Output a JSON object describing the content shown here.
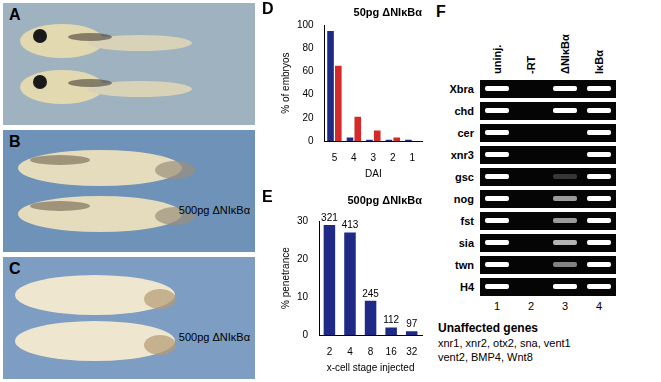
{
  "photos": [
    {
      "letter": "A"
    },
    {
      "letter": "B",
      "label": "500pg ΔNIκBα"
    },
    {
      "letter": "C",
      "label": "500pg ΔNIκBα"
    }
  ],
  "chart_data": [
    {
      "letter": "D",
      "type": "bar",
      "title": "50pg ΔNIκBα",
      "x_label": "DAI",
      "y_label": "% of embryos",
      "categories": [
        "5",
        "4",
        "3",
        "2",
        "1"
      ],
      "series": [
        {
          "color": "#1f2a86",
          "values": [
            95,
            3,
            1,
            1,
            1
          ]
        },
        {
          "color": "#d42a2a",
          "values": [
            65,
            21,
            9,
            3,
            0
          ]
        }
      ],
      "ylim": [
        0,
        100
      ],
      "yticks": [
        0,
        20,
        40,
        60,
        80,
        100
      ],
      "grid": false
    },
    {
      "letter": "E",
      "type": "bar",
      "title": "500pg ΔNIκBα",
      "x_label": "x-cell stage injected",
      "y_label": "% penetrance",
      "categories": [
        "2",
        "4",
        "8",
        "16",
        "32"
      ],
      "series": [
        {
          "color": "#1f2a86",
          "values": [
            29,
            27,
            9,
            2,
            1
          ]
        }
      ],
      "counts": [
        321,
        413,
        245,
        112,
        97
      ],
      "ylim": [
        0,
        30
      ],
      "yticks": [
        0,
        10,
        20,
        30
      ],
      "grid": false
    }
  ],
  "gel": {
    "letter": "F",
    "lanes": [
      "uninj.",
      "-RT",
      "ΔNIκBα",
      "IκBα"
    ],
    "lane_numbers": [
      1,
      2,
      3,
      4
    ],
    "genes": [
      "Xbra",
      "chd",
      "cer",
      "xnr3",
      "gsc",
      "nog",
      "fst",
      "sia",
      "twn",
      "H4"
    ],
    "band_intensity": [
      [
        1,
        0,
        1,
        1
      ],
      [
        1,
        0,
        1,
        1
      ],
      [
        1,
        0,
        0,
        1
      ],
      [
        1,
        0,
        0,
        1
      ],
      [
        1,
        0,
        0.2,
        1
      ],
      [
        1,
        0,
        0.6,
        1
      ],
      [
        1,
        0,
        0.6,
        1
      ],
      [
        1,
        0,
        0.7,
        1
      ],
      [
        1,
        0,
        0.5,
        1
      ],
      [
        1,
        0,
        1,
        1
      ]
    ],
    "note_title": "Unaffected genes",
    "note_lines": [
      "xnr1, xnr2, otx2, sna, vent1",
      "vent2, BMP4, Wnt8"
    ]
  }
}
